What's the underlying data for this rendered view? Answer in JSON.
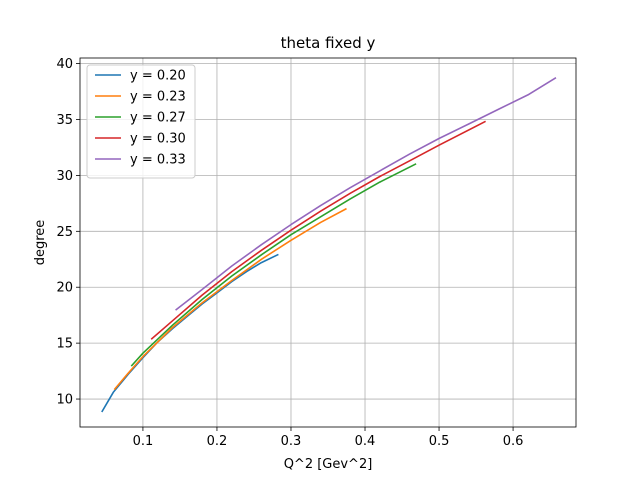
{
  "chart_data": {
    "type": "line",
    "title": "theta fixed y",
    "xlabel": "Q^2 [Gev^2]",
    "ylabel": "degree",
    "xlim": [
      0.015,
      0.685
    ],
    "ylim": [
      7.5,
      40.5
    ],
    "xticks": [
      0.1,
      0.2,
      0.3,
      0.4,
      0.5,
      0.6
    ],
    "xtick_labels": [
      "0.1",
      "0.2",
      "0.3",
      "0.4",
      "0.5",
      "0.6"
    ],
    "yticks": [
      10,
      15,
      20,
      25,
      30,
      35,
      40
    ],
    "ytick_labels": [
      "10",
      "15",
      "20",
      "25",
      "30",
      "35",
      "40"
    ],
    "grid": true,
    "legend_position": "top-left",
    "series": [
      {
        "name": "y = 0.20",
        "color": "#1f77b4",
        "x": [
          0.045,
          0.06,
          0.08,
          0.1,
          0.12,
          0.14,
          0.16,
          0.18,
          0.2,
          0.22,
          0.24,
          0.26,
          0.282
        ],
        "y": [
          8.9,
          10.6,
          12.2,
          13.7,
          15.1,
          16.3,
          17.4,
          18.5,
          19.5,
          20.5,
          21.4,
          22.2,
          22.9
        ]
      },
      {
        "name": "y = 0.23",
        "color": "#ff7f0e",
        "x": [
          0.062,
          0.08,
          0.1,
          0.14,
          0.18,
          0.22,
          0.26,
          0.3,
          0.34,
          0.374
        ],
        "y": [
          10.9,
          12.3,
          13.8,
          16.4,
          18.6,
          20.6,
          22.5,
          24.2,
          25.8,
          27.0
        ]
      },
      {
        "name": "y = 0.27",
        "color": "#2ca02c",
        "x": [
          0.085,
          0.1,
          0.14,
          0.18,
          0.22,
          0.26,
          0.3,
          0.34,
          0.38,
          0.42,
          0.468
        ],
        "y": [
          13.0,
          14.1,
          16.6,
          18.9,
          21.0,
          22.9,
          24.7,
          26.3,
          27.9,
          29.4,
          31.0
        ]
      },
      {
        "name": "y = 0.30",
        "color": "#d62728",
        "x": [
          0.112,
          0.14,
          0.18,
          0.22,
          0.26,
          0.3,
          0.34,
          0.38,
          0.42,
          0.46,
          0.5,
          0.562
        ],
        "y": [
          15.4,
          17.0,
          19.3,
          21.4,
          23.3,
          25.1,
          26.8,
          28.4,
          29.9,
          31.3,
          32.7,
          34.8
        ]
      },
      {
        "name": "y = 0.33",
        "color": "#9467bd",
        "x": [
          0.145,
          0.18,
          0.22,
          0.26,
          0.3,
          0.34,
          0.38,
          0.42,
          0.46,
          0.5,
          0.54,
          0.58,
          0.62,
          0.657
        ],
        "y": [
          18.0,
          19.8,
          21.9,
          23.8,
          25.6,
          27.3,
          28.9,
          30.4,
          31.9,
          33.3,
          34.6,
          35.9,
          37.2,
          38.7
        ]
      }
    ]
  }
}
